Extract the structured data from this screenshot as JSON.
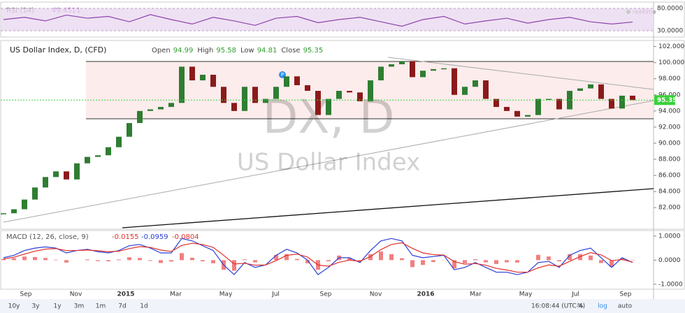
{
  "rsi": {
    "label": "RSI (14)",
    "realtime": "realtime",
    "values": [
      55,
      60,
      52,
      65,
      58,
      62,
      50,
      66,
      55,
      45,
      60,
      52,
      42,
      58,
      62,
      48,
      55,
      60,
      50,
      40,
      55,
      62,
      45,
      52,
      58,
      47,
      55,
      60,
      50,
      45,
      49.4511
    ],
    "ylim": [
      17.5,
      94
    ],
    "yticks": [
      {
        "value": 80,
        "label": "80.0000"
      },
      {
        "value": 30,
        "label": "30.0000"
      }
    ]
  },
  "price": {
    "symbol": "US Dollar Index, D, (CFD)",
    "ohlc": [
      {
        "label": "Open",
        "value": 94.99
      },
      {
        "label": "High",
        "value": 95.58
      },
      {
        "label": "Low",
        "value": 94.81
      },
      {
        "label": "Close",
        "value": 95.35
      }
    ],
    "watermark": "DX, D",
    "watermark_sub": "US Dollar Index",
    "closes": [
      81.3,
      81.8,
      83,
      84.5,
      85.8,
      86.5,
      85.5,
      87.5,
      88.3,
      88.5,
      89.5,
      90.8,
      92.5,
      94,
      94.2,
      94.5,
      95,
      99.5,
      97.8,
      98.5,
      97,
      95,
      94,
      97,
      95,
      95.5,
      97,
      98.3,
      97.2,
      96.5,
      93.5,
      95.5,
      96.5,
      96.3,
      95.2,
      97.8,
      99.5,
      99.8,
      100.2,
      98.2,
      99,
      99.2,
      99.3,
      96,
      97,
      97.8,
      95.5,
      94.5,
      94,
      93.3,
      93.5,
      95.5,
      95.5,
      94.2,
      96.5,
      96.8,
      97.3,
      95.5,
      94.3,
      95.9,
      95.35
    ],
    "ylim": [
      79.5,
      102.4
    ],
    "yticks": [
      {
        "value": 102,
        "label": "102.000"
      },
      {
        "value": 100,
        "label": "100.000"
      },
      {
        "value": 98,
        "label": "98.000"
      },
      {
        "value": 96,
        "label": "96.000"
      },
      {
        "value": 94,
        "label": "94.000"
      },
      {
        "value": 92,
        "label": "92.000"
      },
      {
        "value": 90,
        "label": "90.000"
      },
      {
        "value": 88,
        "label": "88.000"
      },
      {
        "value": 86,
        "label": "86.000"
      },
      {
        "value": 84,
        "label": "84.000"
      },
      {
        "value": 82,
        "label": "82.000"
      }
    ]
  },
  "macd": {
    "label": "MACD (12, 26, close, 9)",
    "macd": [
      0.1,
      0.2,
      0.4,
      0.5,
      0.55,
      0.5,
      0.3,
      0.4,
      0.45,
      0.35,
      0.3,
      0.4,
      0.6,
      0.65,
      0.5,
      0.3,
      0.3,
      0.9,
      0.8,
      0.6,
      0.4,
      -0.2,
      -0.6,
      -0.1,
      -0.3,
      -0.2,
      0.2,
      0.45,
      0.3,
      0.0,
      -0.6,
      -0.3,
      0.1,
      0.1,
      -0.1,
      0.4,
      0.8,
      0.9,
      0.8,
      0.2,
      0.1,
      0.15,
      0.2,
      -0.4,
      -0.3,
      -0.1,
      -0.3,
      -0.5,
      -0.5,
      -0.6,
      -0.5,
      -0.1,
      -0.05,
      -0.3,
      0.2,
      0.4,
      0.5,
      0.1,
      -0.3,
      0.1,
      -0.0959
    ],
    "signal": [
      0.05,
      0.12,
      0.25,
      0.37,
      0.46,
      0.48,
      0.4,
      0.4,
      0.42,
      0.39,
      0.35,
      0.37,
      0.48,
      0.56,
      0.53,
      0.42,
      0.36,
      0.61,
      0.7,
      0.65,
      0.53,
      0.2,
      -0.16,
      -0.13,
      -0.21,
      -0.2,
      -0.02,
      0.2,
      0.25,
      0.13,
      -0.2,
      -0.25,
      -0.09,
      0.0,
      -0.05,
      0.15,
      0.44,
      0.65,
      0.72,
      0.49,
      0.3,
      0.23,
      0.21,
      -0.06,
      -0.17,
      -0.14,
      -0.21,
      -0.34,
      -0.41,
      -0.5,
      -0.5,
      -0.32,
      -0.2,
      -0.25,
      -0.05,
      0.15,
      0.31,
      0.22,
      -0.02,
      0.03,
      -0.0804
    ],
    "histogram": [
      0.05,
      0.08,
      0.15,
      0.13,
      0.09,
      0.02,
      -0.1,
      0,
      0.03,
      -0.04,
      -0.05,
      0.03,
      0.12,
      0.09,
      -0.03,
      -0.12,
      -0.06,
      0.29,
      0.1,
      -0.05,
      -0.13,
      -0.4,
      -0.44,
      0.03,
      -0.09,
      0,
      0.22,
      0.25,
      0.05,
      -0.13,
      -0.4,
      -0.05,
      0.19,
      0.1,
      -0.05,
      0.25,
      0.36,
      0.25,
      0.08,
      -0.29,
      -0.2,
      -0.08,
      -0.01,
      -0.34,
      -0.13,
      0.04,
      -0.09,
      -0.16,
      -0.09,
      -0.1,
      0,
      0.22,
      0.15,
      -0.05,
      0.25,
      0.25,
      0.19,
      -0.12,
      -0.28,
      0.07,
      -0.0155
    ],
    "ylim": [
      -1.15,
      1.17
    ],
    "yticks": [
      {
        "value": 1,
        "label": "1.0000"
      },
      {
        "value": 0,
        "label": "0.0000"
      },
      {
        "value": -1,
        "label": "-1.0000"
      }
    ]
  },
  "time_axis": [
    "Sep",
    "Nov",
    "2015",
    "Mar",
    "May",
    "Jul",
    "Sep",
    "Nov",
    "2016",
    "Mar",
    "May",
    "Jul",
    "Sep"
  ],
  "toolbar": {
    "ranges": [
      "10y",
      "3y",
      "1y",
      "3m",
      "1m",
      "7d",
      "1d"
    ],
    "clock": "16:08:44 (UTC-4)",
    "options": [
      "%",
      "log",
      "auto"
    ]
  }
}
